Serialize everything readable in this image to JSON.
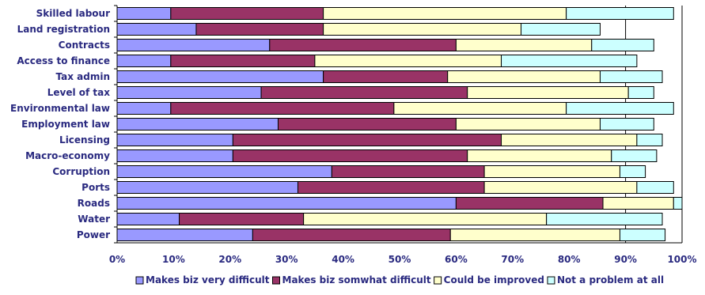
{
  "chart_data": {
    "type": "bar",
    "orientation": "horizontal",
    "stacked": true,
    "categories": [
      "Skilled labour",
      "Land registration",
      "Contracts",
      "Access to finance",
      "Tax admin",
      "Level of tax",
      "Environmental law",
      "Employment law",
      "Licensing",
      "Macro-economy",
      "Corruption",
      "Ports",
      "Roads",
      "Water",
      "Power"
    ],
    "series": [
      {
        "name": "Makes biz very difficult",
        "color": "#9999ff",
        "values": [
          9.5,
          14,
          27,
          9.5,
          36.5,
          25.5,
          9.5,
          28.5,
          20.5,
          20.5,
          38,
          32,
          60,
          11,
          24
        ]
      },
      {
        "name": "Makes biz somwhat difficult",
        "color": "#993366",
        "values": [
          27,
          22.5,
          33,
          25.5,
          22,
          36.5,
          39.5,
          31.5,
          47.5,
          41.5,
          27,
          33,
          26,
          22,
          35
        ]
      },
      {
        "name": "Could be improved",
        "color": "#ffffcc",
        "values": [
          43,
          35,
          24,
          33,
          27,
          28.5,
          30.5,
          25.5,
          24,
          25.5,
          24,
          27,
          12.5,
          43,
          30
        ]
      },
      {
        "name": "Not a problem at all",
        "color": "#ccffff",
        "values": [
          19,
          14,
          11,
          24,
          11,
          4.5,
          19,
          9.5,
          4.5,
          8,
          4.5,
          6.5,
          1.5,
          20.5,
          8
        ]
      }
    ],
    "xlim": [
      0,
      100
    ],
    "x_ticks": [
      "0%",
      "10%",
      "20%",
      "30%",
      "40%",
      "50%",
      "60%",
      "70%",
      "80%",
      "90%",
      "100%"
    ],
    "legend_position": "bottom"
  }
}
